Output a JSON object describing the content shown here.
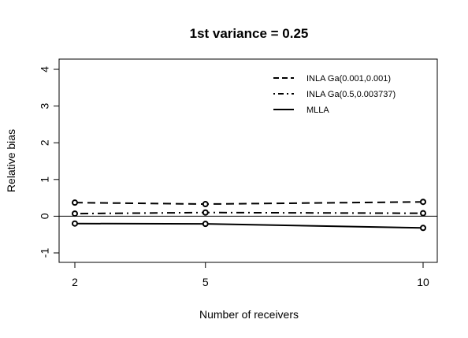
{
  "chart_data": {
    "type": "line",
    "title": "1st variance = 0.25",
    "xlabel": "Number of receivers",
    "ylabel": "Relative bias",
    "x": [
      2,
      5,
      10
    ],
    "x_tick_labels": [
      "2",
      "5",
      "10"
    ],
    "xlim": [
      2,
      10
    ],
    "ylim": [
      -1,
      4
    ],
    "y_ticks": [
      -1,
      0,
      1,
      2,
      3,
      4
    ],
    "y_tick_labels": [
      "-1",
      "0",
      "1",
      "2",
      "3",
      "4"
    ],
    "reference_line_y": 0,
    "legend_position": "top-right",
    "grid": false,
    "series": [
      {
        "name": "INLA Ga(0.001,0.001)",
        "style": "dashed",
        "values": [
          0.37,
          0.33,
          0.39
        ]
      },
      {
        "name": "INLA Ga(0.5,0.003737)",
        "style": "dotdash",
        "values": [
          0.07,
          0.1,
          0.08
        ]
      },
      {
        "name": "MLLA",
        "style": "solid",
        "values": [
          -0.2,
          -0.21,
          -0.32
        ]
      }
    ],
    "colors": {
      "line": "#000000",
      "background": "#ffffff"
    }
  }
}
